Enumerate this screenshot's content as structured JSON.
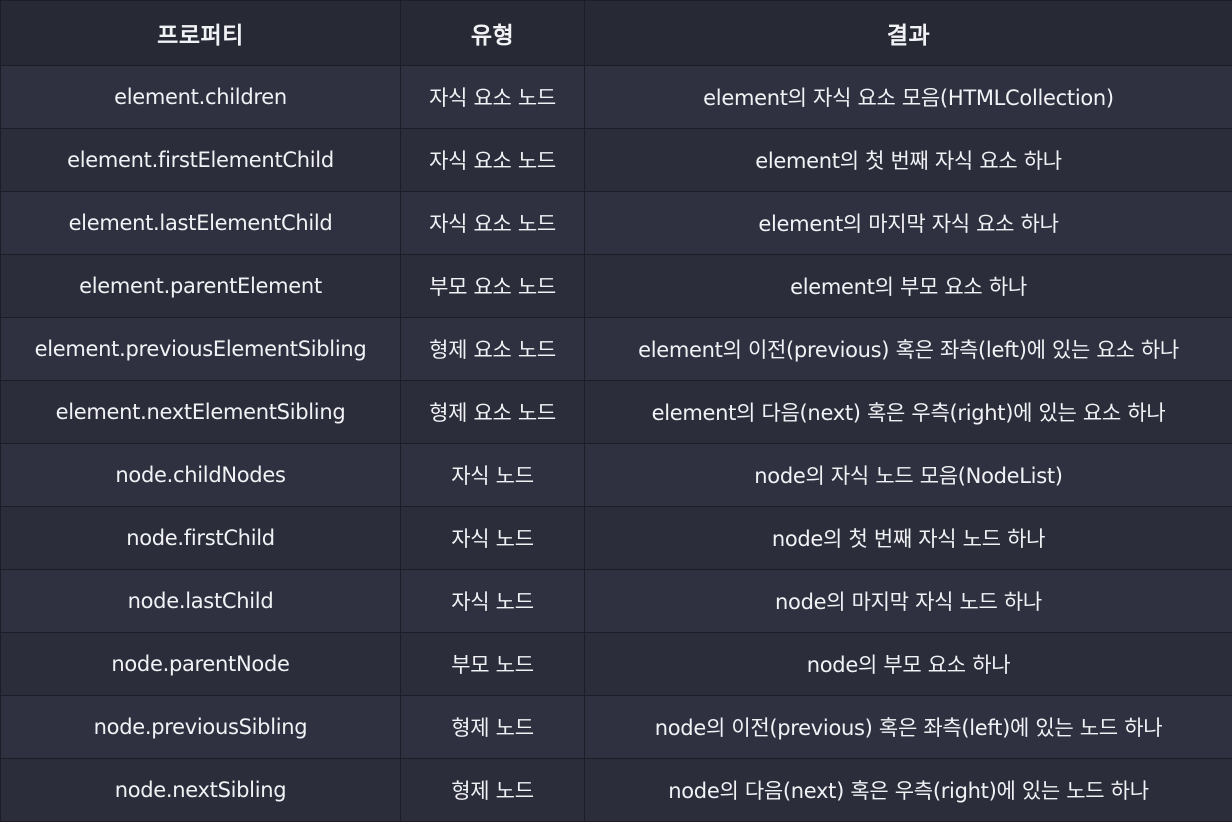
{
  "table": {
    "headers": [
      "프로퍼티",
      "유형",
      "결과"
    ],
    "rows": [
      [
        "element.children",
        "자식 요소 노드",
        "element의 자식 요소 모음(HTMLCollection)"
      ],
      [
        "element.firstElementChild",
        "자식 요소 노드",
        "element의 첫 번째 자식 요소 하나"
      ],
      [
        "element.lastElementChild",
        "자식 요소 노드",
        "element의 마지막 자식 요소 하나"
      ],
      [
        "element.parentElement",
        "부모 요소 노드",
        "element의 부모 요소 하나"
      ],
      [
        "element.previousElementSibling",
        "형제 요소 노드",
        "element의 이전(previous) 혹은 좌측(left)에 있는 요소 하나"
      ],
      [
        "element.nextElementSibling",
        "형제 요소 노드",
        "element의 다음(next) 혹은 우측(right)에 있는 요소 하나"
      ],
      [
        "node.childNodes",
        "자식 노드",
        "node의 자식 노드 모음(NodeList)"
      ],
      [
        "node.firstChild",
        "자식 노드",
        "node의 첫 번째 자식 노드 하나"
      ],
      [
        "node.lastChild",
        "자식 노드",
        "node의 마지막 자식 노드 하나"
      ],
      [
        "node.parentNode",
        "부모 노드",
        "node의 부모 요소 하나"
      ],
      [
        "node.previousSibling",
        "형제 노드",
        "node의 이전(previous) 혹은 좌측(left)에 있는 노드 하나"
      ],
      [
        "node.nextSibling",
        "형제 노드",
        "node의 다음(next) 혹은 우측(right)에 있는 노드 하나"
      ]
    ]
  }
}
